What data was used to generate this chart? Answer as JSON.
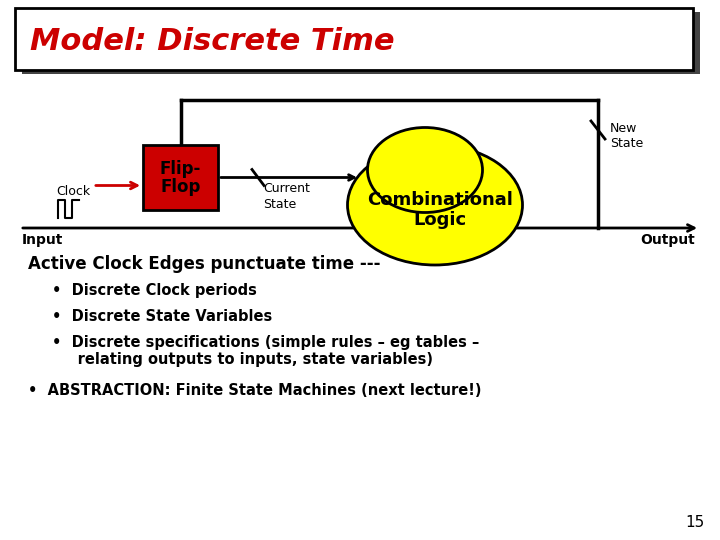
{
  "title": "Model: Discrete Time",
  "title_color": "#cc0000",
  "bg_color": "#ffffff",
  "slide_number": "15",
  "flipflop_color": "#cc0000",
  "combinational_color": "#ffff00",
  "bullet_heading": "Active Clock Edges punctuate time ---",
  "bullets_indent1": [
    "Discrete Clock periods",
    "Discrete State Variables",
    "Discrete specifications (simple rules – eg tables –\n     relating outputs to inputs, state variables)"
  ],
  "bullets_indent2": [
    "ABSTRACTION: Finite State Machines (next lecture!)"
  ]
}
